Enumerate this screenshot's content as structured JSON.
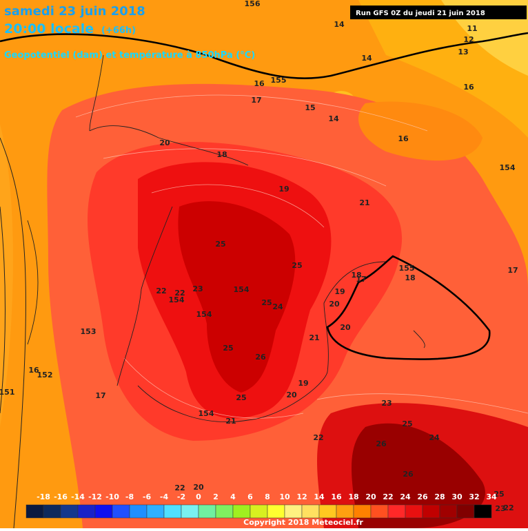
{
  "header": {
    "title": "samedi 23 juin 2018",
    "time": "20:00 locale",
    "lead": "(+66h)",
    "subtitle": "Geopotentiel (dam) et température à 850hPa (°C)",
    "run": "Run GFS 0Z du jeudi 21 juin 2018"
  },
  "map": {
    "labels": [
      "156",
      "14",
      "11",
      "12",
      "13",
      "14",
      "155",
      "16",
      "16",
      "17",
      "15",
      "14",
      "16",
      "20",
      "18",
      "154",
      "19",
      "21",
      "25",
      "25",
      "155",
      "18",
      "18",
      "17",
      "17",
      "22",
      "22",
      "23",
      "154",
      "154",
      "19",
      "25",
      "24",
      "20",
      "154",
      "20",
      "21",
      "153",
      "25",
      "26",
      "16",
      "152",
      "19",
      "151",
      "17",
      "20",
      "25",
      "23",
      "154",
      "21",
      "25",
      "22",
      "24",
      "26",
      "26",
      "20",
      "22",
      "25",
      "22",
      "23"
    ]
  },
  "colorbar": {
    "labels": [
      "-18",
      "-16",
      "-14",
      "-12",
      "-10",
      "-8",
      "-6",
      "-4",
      "-2",
      "0",
      "2",
      "4",
      "6",
      "8",
      "10",
      "12",
      "14",
      "16",
      "18",
      "20",
      "22",
      "24",
      "26",
      "28",
      "30",
      "32",
      "34"
    ],
    "colors": [
      "#0b1a40",
      "#0e2a5c",
      "#15388c",
      "#1a22c8",
      "#1010f0",
      "#2050ff",
      "#1f8fff",
      "#2fb0ff",
      "#50e0ff",
      "#7af0f0",
      "#70f0a0",
      "#80f060",
      "#a0f020",
      "#d8f020",
      "#ffff30",
      "#fff080",
      "#ffe060",
      "#ffc820",
      "#ffa010",
      "#ff8000",
      "#ff5020",
      "#ff2828",
      "#e81010",
      "#c00000",
      "#a00000",
      "#800000",
      "#000000"
    ]
  },
  "footer": {
    "copyright": "Copyright 2018 Meteociel.fr"
  }
}
